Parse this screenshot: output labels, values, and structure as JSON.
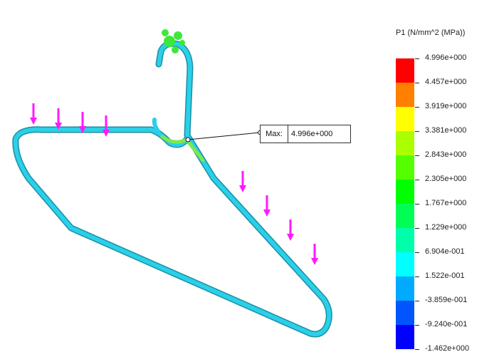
{
  "legend": {
    "title": "P1 (N/mm^2 (MPa))",
    "ticks": [
      "4.996e+000",
      "4.457e+000",
      "3.919e+000",
      "3.381e+000",
      "2.843e+000",
      "2.305e+000",
      "1.767e+000",
      "1.229e+000",
      "6.904e-001",
      "1.522e-001",
      "-3.859e-001",
      "-9.240e-001",
      "-1.462e+000"
    ],
    "bands": [
      "#ff0000",
      "#ff7f00",
      "#ffff00",
      "#aaff00",
      "#55ff00",
      "#00ff00",
      "#00ff55",
      "#00ffaa",
      "#00ffff",
      "#00aaff",
      "#0055ff",
      "#0000ff"
    ]
  },
  "probe": {
    "label": "Max:",
    "value": "4.996e+000"
  },
  "model": {
    "body_color": "#2ad0e8",
    "highlight_color": "#7ee84a",
    "fixture_color": "#3ee83a",
    "load_arrow_color": "#ff19ff",
    "load_arrow_count": 8
  }
}
